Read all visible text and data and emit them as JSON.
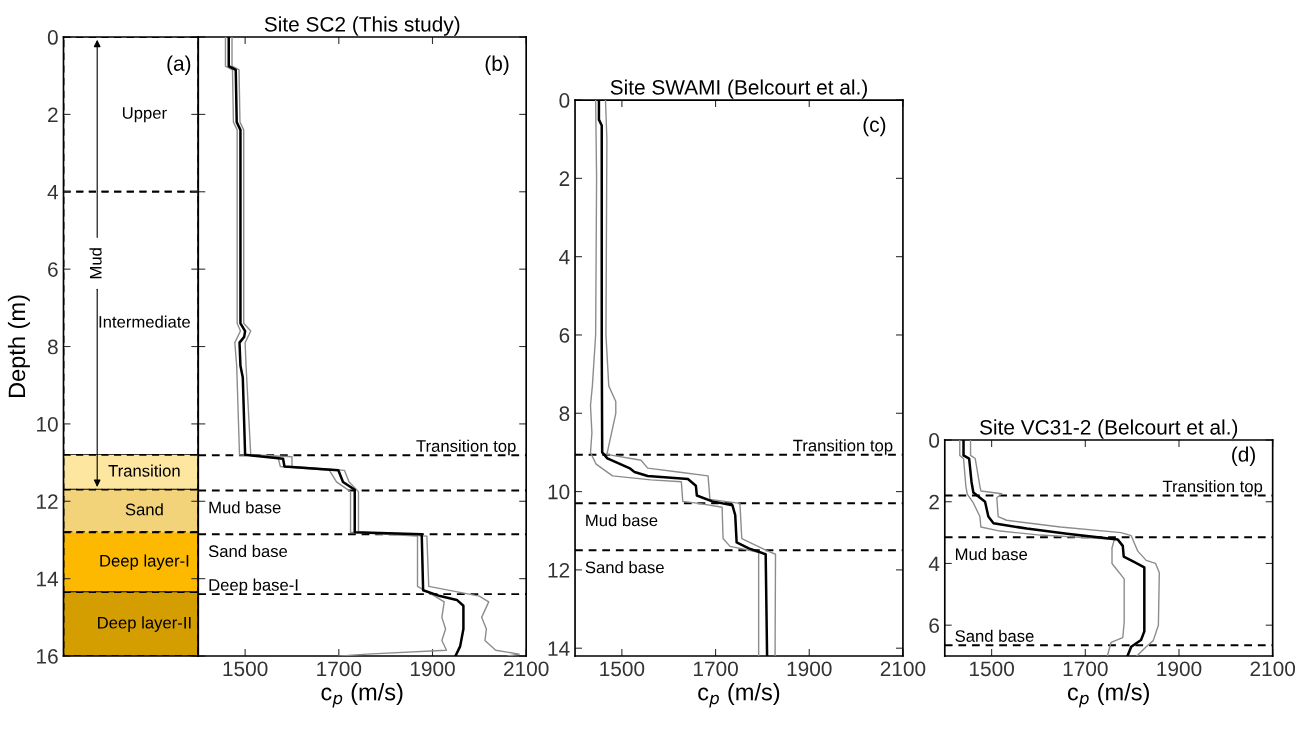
{
  "chart_data": [
    {
      "type": "bar",
      "stacked": true,
      "categories": [
        null
      ],
      "ylabel": "Depth (m)",
      "ylim": [
        16,
        0
      ],
      "yticks": [
        0,
        2,
        4,
        6,
        8,
        10,
        12,
        14,
        16
      ],
      "tick_labels": "y",
      "series": [
        {
          "name": "Upper",
          "color": "#ffffff",
          "values": [
            4
          ]
        },
        {
          "name": "Intermediate",
          "color": "#ffffff",
          "values": [
            6.8
          ]
        },
        {
          "name": "Transition",
          "color": "#fde6a0",
          "values": [
            0.9
          ]
        },
        {
          "name": "Sand",
          "color": "#f2d37a",
          "values": [
            1.1
          ]
        },
        {
          "name": "Deep layer-I",
          "color": "#fcb900",
          "values": [
            1.55
          ]
        },
        {
          "name": "Deep layer-II",
          "color": "#d49e00",
          "values": [
            1.65
          ]
        }
      ],
      "line_style": "dashed",
      "annotations": [
        "(a)",
        "Mud"
      ]
    },
    {
      "type": "line",
      "title": "Site SC2 (This study)",
      "xlabel": "c$_{p}$ (m/s)",
      "xlim": [
        1400,
        2100
      ],
      "xticks": [
        1500,
        1700,
        1900,
        2100
      ],
      "ylim": [
        16,
        0
      ],
      "yticks": [
        0,
        2,
        4,
        6,
        8,
        10,
        12,
        14,
        16
      ],
      "tick_labels": "x",
      "grid": false,
      "legend": false,
      "line_style": "solid",
      "marker": "none",
      "series": [
        {
          "color": "#8c8c8c",
          "x": [
            1458,
            1458,
            1473,
            1475,
            1483,
            1483,
            1490,
            1478,
            1482,
            1488,
            1570,
            1575,
            1680,
            1695,
            1725,
            1725,
            1868,
            1868,
            1905,
            1925,
            1920,
            1928,
            1920,
            1930,
            1760,
            1700
          ],
          "values": [
            0,
            0.75,
            0.85,
            2.2,
            2.4,
            7.4,
            7.6,
            7.9,
            8.5,
            10.8,
            10.85,
            11.1,
            11.2,
            11.5,
            11.75,
            12.8,
            12.9,
            14.2,
            14.45,
            14.6,
            15.0,
            15.3,
            15.6,
            15.85,
            15.95,
            16
          ]
        },
        {
          "color": "#8c8c8c",
          "x": [
            1472,
            1472,
            1487,
            1489,
            1497,
            1497,
            1512,
            1500,
            1502,
            1512,
            1600,
            1600,
            1712,
            1722,
            1742,
            1742,
            1888,
            1892,
            2000,
            2020,
            2005,
            2015,
            2012,
            2035,
            2085,
            2060
          ],
          "values": [
            0,
            0.75,
            0.85,
            2.2,
            2.4,
            7.4,
            7.6,
            7.9,
            8.5,
            10.8,
            10.85,
            11.1,
            11.2,
            11.5,
            11.75,
            12.8,
            12.9,
            14.2,
            14.45,
            14.6,
            15.0,
            15.3,
            15.6,
            15.85,
            15.95,
            16
          ]
        },
        {
          "color": "#000000",
          "x": [
            1465,
            1465,
            1480,
            1482,
            1490,
            1490,
            1500,
            1498,
            1488,
            1490,
            1495,
            1500,
            1581,
            1584,
            1699,
            1709,
            1734,
            1734,
            1877,
            1880,
            1916,
            1952,
            1966,
            1966,
            1959,
            1949
          ],
          "values": [
            0,
            0.75,
            0.85,
            2.2,
            2.4,
            7.4,
            7.6,
            7.75,
            7.9,
            8.5,
            8.8,
            10.8,
            10.9,
            11.1,
            11.2,
            11.5,
            11.7,
            12.8,
            12.85,
            14.3,
            14.45,
            14.55,
            14.7,
            15.3,
            15.75,
            16
          ]
        }
      ],
      "ref_lines": [
        {
          "axis": "y",
          "value": 10.81,
          "label": "Transition top",
          "line_style": "dashed",
          "color": "#000000"
        },
        {
          "axis": "y",
          "value": 11.72,
          "label": "Mud base",
          "line_style": "dashed",
          "color": "#000000"
        },
        {
          "axis": "y",
          "value": 12.85,
          "label": "Sand base",
          "line_style": "dashed",
          "color": "#000000"
        },
        {
          "axis": "y",
          "value": 14.4,
          "label": "Deep base-I",
          "line_style": "dashed",
          "color": "#000000"
        }
      ],
      "annotations": [
        "(b)"
      ]
    },
    {
      "type": "line",
      "title": "Site SWAMI (Belcourt et al.)",
      "xlabel": "c$_{p}$ (m/s)",
      "xlim": [
        1400,
        2100
      ],
      "xticks": [
        1500,
        1700,
        1900,
        2100
      ],
      "ylim": [
        14.2,
        0
      ],
      "yticks": [
        0,
        2,
        4,
        6,
        8,
        10,
        12,
        14
      ],
      "grid": false,
      "legend": false,
      "line_style": "solid",
      "marker": "none",
      "series": [
        {
          "color": "#8c8c8c",
          "x": [
            1444,
            1446,
            1444,
            1437,
            1433,
            1436,
            1433,
            1445,
            1480,
            1562,
            1627,
            1630,
            1664,
            1714,
            1716,
            1731,
            1792,
            1792
          ],
          "values": [
            0,
            2,
            6,
            7.3,
            7.8,
            8.5,
            9.0,
            9.3,
            9.6,
            9.7,
            9.75,
            10.25,
            10.3,
            10.4,
            11.2,
            11.4,
            11.55,
            14.2
          ]
        },
        {
          "color": "#8c8c8c",
          "x": [
            1465,
            1468,
            1466,
            1472,
            1487,
            1487,
            1478,
            1468,
            1541,
            1555,
            1620,
            1684,
            1688,
            1752,
            1756,
            1808,
            1828,
            1827
          ],
          "values": [
            0,
            1,
            6,
            7.3,
            7.7,
            8.0,
            8.5,
            9.05,
            9.2,
            9.4,
            9.5,
            9.6,
            10.2,
            10.3,
            11.2,
            11.5,
            11.6,
            14.2
          ]
        },
        {
          "color": "#000000",
          "x": [
            1451,
            1451,
            1457,
            1457,
            1458,
            1469,
            1516,
            1527,
            1555,
            1641,
            1658,
            1660,
            1693,
            1736,
            1742,
            1745,
            1771,
            1807,
            1810
          ],
          "values": [
            0,
            0.5,
            0.65,
            6.2,
            9.0,
            9.15,
            9.4,
            9.5,
            9.6,
            9.68,
            9.85,
            10.1,
            10.25,
            10.35,
            10.6,
            11.3,
            11.45,
            11.6,
            14.2
          ]
        }
      ],
      "ref_lines": [
        {
          "axis": "y",
          "value": 9.06,
          "label": "Transition top",
          "line_style": "dashed",
          "color": "#000000"
        },
        {
          "axis": "y",
          "value": 10.3,
          "label": "Mud base",
          "line_style": "dashed",
          "color": "#000000"
        },
        {
          "axis": "y",
          "value": 11.5,
          "label": "Sand base",
          "line_style": "dashed",
          "color": "#000000"
        }
      ],
      "annotations": [
        "(c)"
      ]
    },
    {
      "type": "line",
      "title": "Site VC31-2 (Belcourt et al.)",
      "xlabel": "c$_{p}$ (m/s)",
      "xlim": [
        1400,
        2100
      ],
      "xticks": [
        1500,
        1700,
        1900,
        2100
      ],
      "ylim": [
        7,
        0
      ],
      "yticks": [
        0,
        2,
        4,
        6
      ],
      "grid": false,
      "legend": false,
      "line_style": "solid",
      "marker": "none",
      "series": [
        {
          "color": "#8c8c8c",
          "x": [
            1432,
            1432,
            1440,
            1445,
            1448,
            1461,
            1475,
            1477,
            1518,
            1604,
            1762,
            1757,
            1757,
            1783,
            1783,
            1780,
            1755,
            1747
          ],
          "values": [
            0,
            0.5,
            0.6,
            1.5,
            1.75,
            2.04,
            2.48,
            2.82,
            2.95,
            3.08,
            3.22,
            3.5,
            4.0,
            4.5,
            5.9,
            6.4,
            6.56,
            7.0
          ]
        },
        {
          "color": "#8c8c8c",
          "x": [
            1455,
            1455,
            1465,
            1475,
            1477,
            1522,
            1511,
            1514,
            1532,
            1647,
            1776,
            1798,
            1805,
            1812,
            1830,
            1850,
            1858,
            1856,
            1845,
            1830,
            1810
          ],
          "values": [
            0,
            0.5,
            0.6,
            1.5,
            1.65,
            1.74,
            1.87,
            2.48,
            2.6,
            2.82,
            3.0,
            3.1,
            3.35,
            3.6,
            3.9,
            4.0,
            4.3,
            6.0,
            6.5,
            6.7,
            7.0
          ]
        },
        {
          "color": "#000000",
          "x": [
            1440,
            1440,
            1452,
            1457,
            1461,
            1486,
            1493,
            1504,
            1575,
            1661,
            1769,
            1780,
            1782,
            1805,
            1826,
            1826,
            1819,
            1798,
            1790
          ],
          "values": [
            0,
            0.5,
            0.6,
            1.35,
            1.7,
            2.0,
            2.48,
            2.7,
            2.87,
            3.04,
            3.22,
            3.43,
            3.78,
            3.96,
            4.13,
            6.2,
            6.48,
            6.7,
            7.0
          ]
        }
      ],
      "ref_lines": [
        {
          "axis": "y",
          "value": 1.8,
          "label": "Transition top",
          "line_style": "dashed",
          "color": "#000000"
        },
        {
          "axis": "y",
          "value": 3.15,
          "label": "Mud base",
          "line_style": "dashed",
          "color": "#000000"
        },
        {
          "axis": "y",
          "value": 6.65,
          "label": "Sand base",
          "line_style": "dashed",
          "color": "#000000"
        }
      ],
      "annotations": [
        "(d)"
      ]
    }
  ]
}
